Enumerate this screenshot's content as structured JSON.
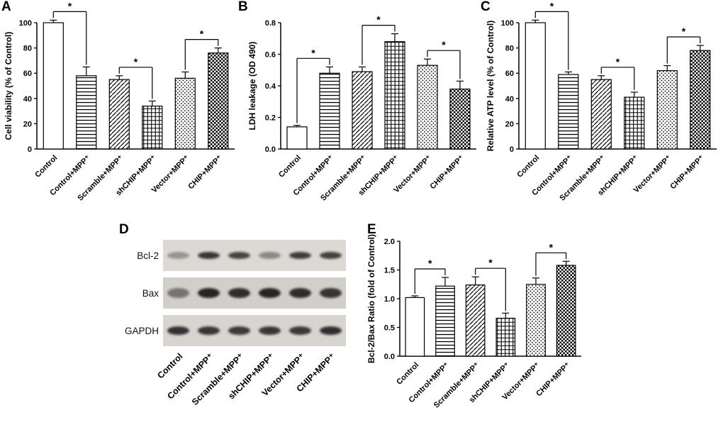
{
  "figure": {
    "panels": [
      {
        "id": "A",
        "label": "A"
      },
      {
        "id": "B",
        "label": "B"
      },
      {
        "id": "C",
        "label": "C"
      },
      {
        "id": "D",
        "label": "D"
      },
      {
        "id": "E",
        "label": "E"
      }
    ]
  },
  "categories": [
    "Control",
    "Control+MPP⁺",
    "Scramble+MPP⁺",
    "shCHIP+MPP⁺",
    "Vector+MPP⁺",
    "CHIP+MPP⁺"
  ],
  "bar_styles": [
    "open",
    "hlines",
    "diag",
    "grid",
    "dots",
    "checker"
  ],
  "colors": {
    "ink": "#000000",
    "bar_fill": "#ffffff",
    "band": "#1e1e1e"
  },
  "chart_data": [
    {
      "id": "chartA",
      "panel": "A",
      "type": "bar",
      "ylabel": "Cell viability (% of Control)",
      "values": [
        100,
        58,
        55,
        34,
        56,
        76
      ],
      "errors": [
        2,
        7,
        3,
        4,
        5,
        4
      ],
      "ylim": [
        0,
        100
      ],
      "yticks": [
        0,
        20,
        40,
        60,
        80,
        100
      ],
      "ytick_labels": [
        "0",
        "20",
        "40",
        "60",
        "80",
        "100"
      ],
      "grid": false,
      "significance": [
        {
          "pair": [
            0,
            1
          ],
          "label": "*"
        },
        {
          "pair": [
            2,
            3
          ],
          "label": "*"
        },
        {
          "pair": [
            4,
            5
          ],
          "label": "*"
        }
      ]
    },
    {
      "id": "chartB",
      "panel": "B",
      "type": "bar",
      "ylabel": "LDH leakage (OD 490)",
      "values": [
        0.14,
        0.48,
        0.49,
        0.68,
        0.53,
        0.38
      ],
      "errors": [
        0.01,
        0.04,
        0.03,
        0.05,
        0.04,
        0.05
      ],
      "ylim": [
        0,
        0.8
      ],
      "yticks": [
        0,
        0.2,
        0.4,
        0.6,
        0.8
      ],
      "ytick_labels": [
        "0.0",
        "0.2",
        "0.4",
        "0.6",
        "0.8"
      ],
      "grid": false,
      "significance": [
        {
          "pair": [
            0,
            1
          ],
          "label": "*"
        },
        {
          "pair": [
            2,
            3
          ],
          "label": "*"
        },
        {
          "pair": [
            4,
            5
          ],
          "label": "*"
        }
      ]
    },
    {
      "id": "chartC",
      "panel": "C",
      "type": "bar",
      "ylabel": "Relative ATP level (% of Control)",
      "values": [
        100,
        59,
        55,
        41,
        62,
        78
      ],
      "errors": [
        2,
        2,
        3,
        4,
        4,
        4
      ],
      "ylim": [
        0,
        100
      ],
      "yticks": [
        0,
        20,
        40,
        60,
        80,
        100
      ],
      "ytick_labels": [
        "0",
        "20",
        "40",
        "60",
        "80",
        "100"
      ],
      "grid": false,
      "significance": [
        {
          "pair": [
            0,
            1
          ],
          "label": "*"
        },
        {
          "pair": [
            2,
            3
          ],
          "label": "*"
        },
        {
          "pair": [
            4,
            5
          ],
          "label": "*"
        }
      ]
    },
    {
      "id": "chartE",
      "panel": "E",
      "type": "bar",
      "ylabel": "Bcl-2/Bax Ratio (fold of Control)",
      "values": [
        1.02,
        1.22,
        1.24,
        0.66,
        1.25,
        1.58
      ],
      "errors": [
        0.03,
        0.15,
        0.14,
        0.09,
        0.11,
        0.07
      ],
      "ylim": [
        0,
        2
      ],
      "yticks": [
        0,
        0.5,
        1,
        1.5,
        2
      ],
      "ytick_labels": [
        "0.0",
        "0.5",
        "1.0",
        "1.5",
        "2.0"
      ],
      "grid": false,
      "significance": [
        {
          "pair": [
            0,
            1
          ],
          "label": "*"
        },
        {
          "pair": [
            2,
            3
          ],
          "label": "*"
        },
        {
          "pair": [
            4,
            5
          ],
          "label": "*"
        }
      ]
    }
  ],
  "blot": {
    "rows": [
      {
        "label": "Bcl-2",
        "bg": "#dcd9d4",
        "band_ry": 5,
        "intensities": [
          0.35,
          0.85,
          0.78,
          0.42,
          0.82,
          0.8
        ]
      },
      {
        "label": "Bax",
        "bg": "#d2cfcb",
        "band_ry": 7,
        "intensities": [
          0.5,
          0.95,
          0.9,
          0.95,
          0.9,
          0.86
        ]
      },
      {
        "label": "GAPDH",
        "bg": "#d8d5d1",
        "band_ry": 6,
        "intensities": [
          0.88,
          0.85,
          0.83,
          0.85,
          0.84,
          0.9
        ]
      }
    ]
  }
}
